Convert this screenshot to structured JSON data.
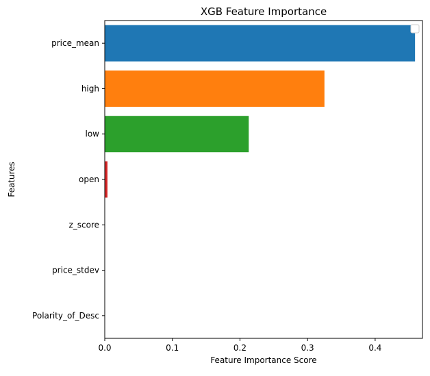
{
  "chart_data": {
    "type": "bar",
    "orientation": "horizontal",
    "title": "XGB Feature Importance",
    "xlabel": "Feature Importance Score",
    "ylabel": "Features",
    "categories": [
      "price_mean",
      "high",
      "low",
      "open",
      "z_score",
      "price_stdev",
      "Polarity_of_Desc"
    ],
    "values": [
      0.459,
      0.325,
      0.213,
      0.004,
      0.0,
      0.0,
      0.0
    ],
    "colors": [
      "#1f77b4",
      "#ff7f0e",
      "#2ca02c",
      "#d62728",
      "#9467bd",
      "#8c564b",
      "#e377c2"
    ],
    "xlim": [
      0,
      0.47
    ],
    "xticks": [
      0.0,
      0.1,
      0.2,
      0.3,
      0.4
    ],
    "xtick_labels": [
      "0.0",
      "0.1",
      "0.2",
      "0.3",
      "0.4"
    ],
    "grid": false,
    "legend": {
      "placement": "top-right",
      "entries": []
    }
  }
}
